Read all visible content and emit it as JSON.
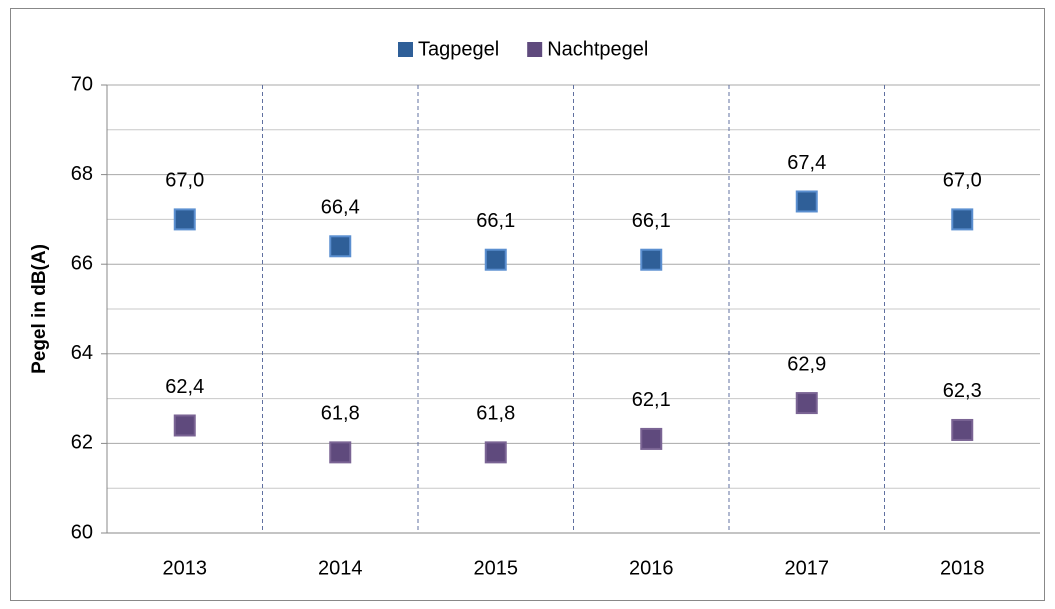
{
  "chart_data": {
    "type": "scatter",
    "y_label": "Pegel in dB(A)",
    "categories": [
      "2013",
      "2014",
      "2015",
      "2016",
      "2017",
      "2018"
    ],
    "series": [
      {
        "name": "Tagpegel",
        "color": "#2f5f98",
        "values": [
          67.0,
          66.4,
          66.1,
          66.1,
          67.4,
          67.0
        ],
        "value_labels": [
          "67,0",
          "66,4",
          "66,1",
          "66,1",
          "67,4",
          "67,0"
        ]
      },
      {
        "name": "Nachtpegel",
        "color": "#5f4a7d",
        "values": [
          62.4,
          61.8,
          61.8,
          62.1,
          62.9,
          62.3
        ],
        "value_labels": [
          "62,4",
          "61,8",
          "61,8",
          "62,1",
          "62,9",
          "62,3"
        ]
      }
    ],
    "ylim": [
      60,
      70
    ],
    "yticks": [
      60,
      62,
      64,
      66,
      68,
      70
    ],
    "yminorticks": [
      61,
      63,
      65,
      67,
      69
    ],
    "grid": true,
    "legend": "top"
  }
}
